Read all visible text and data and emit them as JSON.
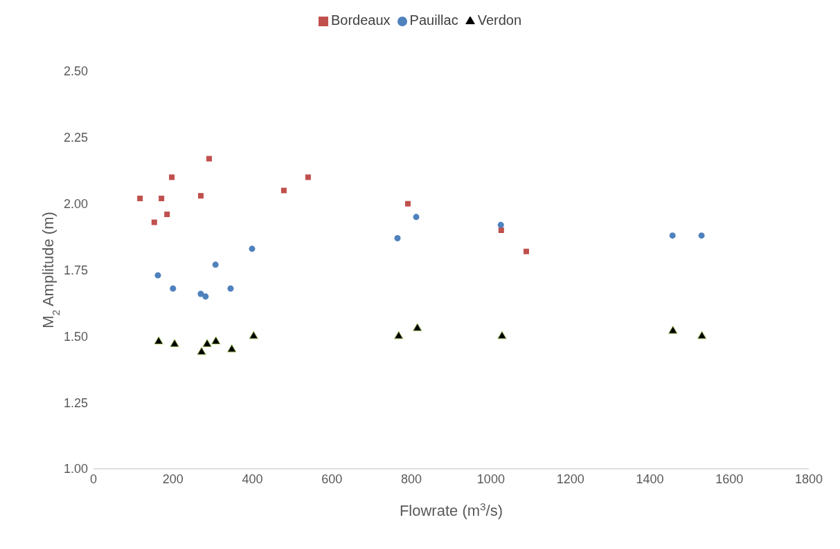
{
  "chart_data": {
    "type": "scatter",
    "xlabel": "Flowrate (m$^{3}$/s)",
    "ylabel": "M$_{2}$ Amplitude (m)",
    "xlim": [
      0,
      1800
    ],
    "xticks": [
      0,
      200,
      400,
      600,
      800,
      1000,
      1200,
      1400,
      1600,
      1800
    ],
    "ylim": [
      1.0,
      2.5
    ],
    "yticks": [
      {
        "value": 1.0,
        "label": "1.00"
      },
      {
        "value": 1.25,
        "label": "1.25"
      },
      {
        "value": 1.5,
        "label": "1.50"
      },
      {
        "value": 1.75,
        "label": "1.75"
      },
      {
        "value": 2.0,
        "label": "2.00"
      },
      {
        "value": 2.25,
        "label": "2.25"
      },
      {
        "value": 2.5,
        "label": "2.50"
      }
    ],
    "grid": false,
    "legend": "top",
    "series": [
      {
        "name": "Bordeaux",
        "color": "#c0504d",
        "marker": "square",
        "x": [
          117,
          153,
          171,
          185,
          197,
          270,
          291,
          479,
          540,
          791,
          1026,
          1089
        ],
        "values": [
          2.02,
          1.93,
          2.02,
          1.96,
          2.1,
          2.03,
          2.17,
          2.05,
          2.1,
          2.0,
          1.9,
          1.82
        ]
      },
      {
        "name": "Pauillac",
        "color": "#4f81bd",
        "marker": "circle",
        "x": [
          162,
          200,
          270,
          282,
          307,
          345,
          399,
          765,
          812,
          1025,
          1457,
          1530
        ],
        "values": [
          1.73,
          1.68,
          1.66,
          1.65,
          1.77,
          1.68,
          1.83,
          1.87,
          1.95,
          1.92,
          1.88,
          1.88
        ]
      },
      {
        "name": "Verdon",
        "color": "#000000",
        "marker": "triangle",
        "x": [
          164,
          204,
          272,
          286,
          308,
          348,
          403,
          768,
          815,
          1028,
          1458,
          1531
        ],
        "values": [
          1.48,
          1.47,
          1.44,
          1.47,
          1.48,
          1.45,
          1.5,
          1.5,
          1.53,
          1.5,
          1.52,
          1.5
        ]
      }
    ]
  }
}
